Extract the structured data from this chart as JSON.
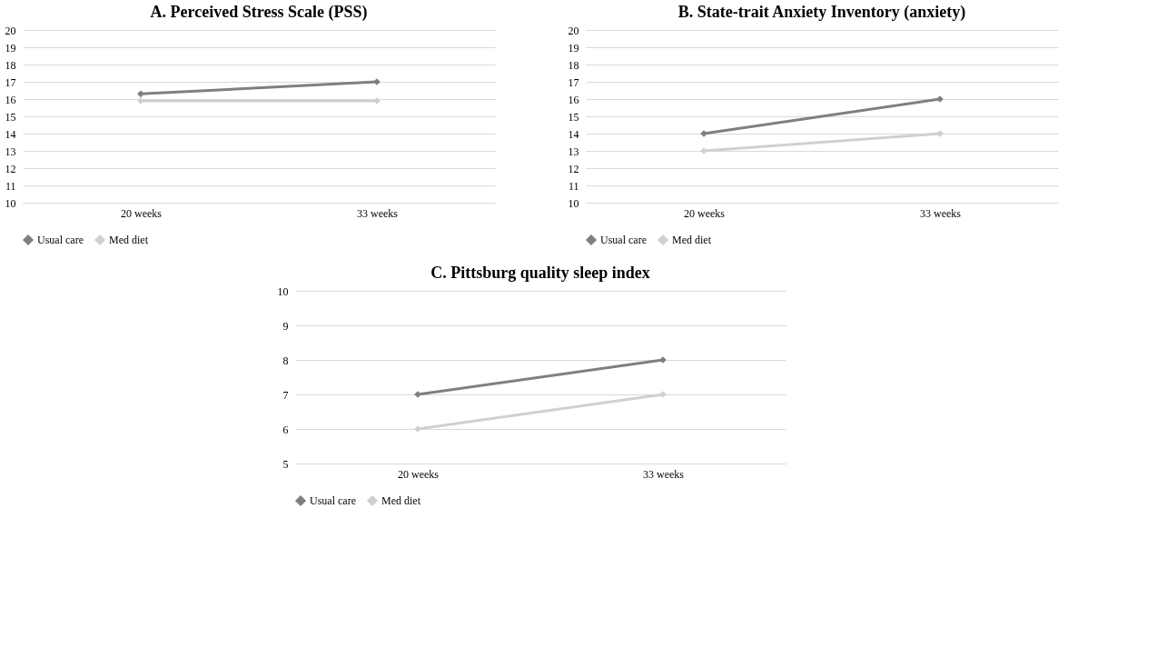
{
  "chart_data": [
    {
      "type": "line",
      "title": "A. Perceived Stress Scale (PSS)",
      "categories": [
        "20 weeks",
        "33 weeks"
      ],
      "ylim": [
        10,
        20
      ],
      "yticks": [
        10,
        11,
        12,
        13,
        14,
        15,
        16,
        17,
        18,
        19,
        20
      ],
      "grid": "y",
      "legend": "bottom",
      "marker": "diamond",
      "line_style": "solid",
      "series": [
        {
          "name": "Usual care",
          "color": "#7f7f7f",
          "values": [
            16.3,
            17.0
          ]
        },
        {
          "name": "Med diet",
          "color": "#d0d0d0",
          "values": [
            15.9,
            15.9
          ]
        }
      ]
    },
    {
      "type": "line",
      "title": "B. State-trait Anxiety Inventory (anxiety)",
      "categories": [
        "20 weeks",
        "33 weeks"
      ],
      "ylim": [
        10,
        20
      ],
      "yticks": [
        10,
        11,
        12,
        13,
        14,
        15,
        16,
        17,
        18,
        19,
        20
      ],
      "grid": "y",
      "legend": "bottom",
      "marker": "diamond",
      "line_style": "solid",
      "series": [
        {
          "name": "Usual care",
          "color": "#7f7f7f",
          "values": [
            14,
            16
          ]
        },
        {
          "name": "Med diet",
          "color": "#d0d0d0",
          "values": [
            13,
            14
          ]
        }
      ]
    },
    {
      "type": "line",
      "title": "C. Pittsburg quality sleep index",
      "categories": [
        "20 weeks",
        "33 weeks"
      ],
      "ylim": [
        5,
        10
      ],
      "yticks": [
        5,
        6,
        7,
        8,
        9,
        10
      ],
      "grid": "y",
      "legend": "bottom",
      "marker": "diamond",
      "line_style": "solid",
      "series": [
        {
          "name": "Usual care",
          "color": "#7f7f7f",
          "values": [
            7,
            8
          ]
        },
        {
          "name": "Med diet",
          "color": "#d0d0d0",
          "values": [
            6,
            7
          ]
        }
      ]
    }
  ]
}
